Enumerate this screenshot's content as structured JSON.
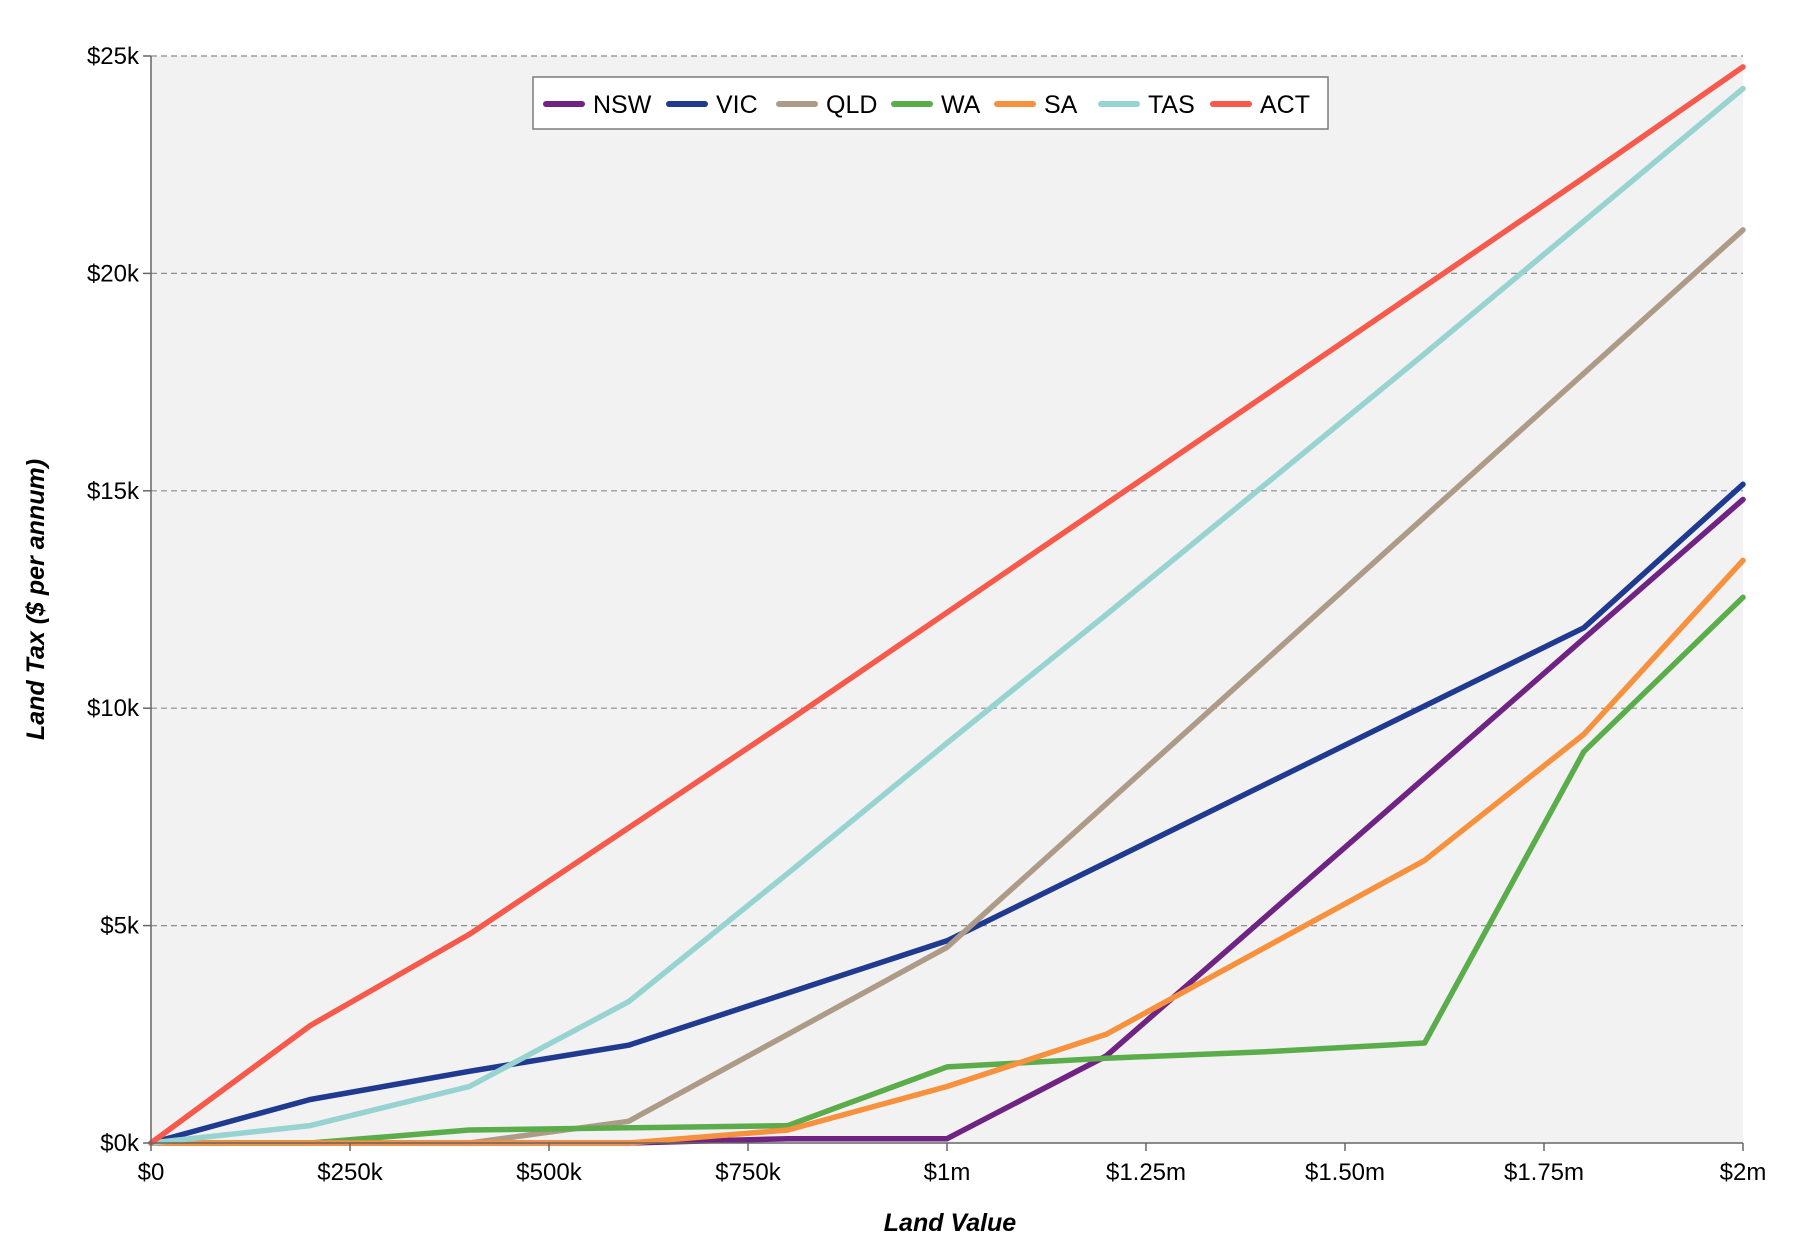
{
  "chart_data": {
    "type": "line",
    "title": "",
    "xlabel": "Land Value",
    "ylabel": "Land Tax  ($ per annum)",
    "xlim": [
      0,
      2000000
    ],
    "ylim": [
      0,
      25000
    ],
    "grid": "horizontal dashed",
    "legend_position": "top-center",
    "plot_background": "#f2f2f2",
    "x_ticks": [
      {
        "value": 0,
        "label": "$0"
      },
      {
        "value": 250000,
        "label": "$250k"
      },
      {
        "value": 500000,
        "label": "$500k"
      },
      {
        "value": 750000,
        "label": "$750k"
      },
      {
        "value": 1000000,
        "label": "$1m"
      },
      {
        "value": 1250000,
        "label": "$1.25m"
      },
      {
        "value": 1500000,
        "label": "$1.50m"
      },
      {
        "value": 1750000,
        "label": "$1.75m"
      },
      {
        "value": 2000000,
        "label": "$2m"
      }
    ],
    "y_ticks": [
      {
        "value": 0,
        "label": "$0k"
      },
      {
        "value": 5000,
        "label": "$5k"
      },
      {
        "value": 10000,
        "label": "$10k"
      },
      {
        "value": 15000,
        "label": "$15k"
      },
      {
        "value": 20000,
        "label": "$20k"
      },
      {
        "value": 25000,
        "label": "$25k"
      }
    ],
    "x": [
      0,
      200000,
      400000,
      600000,
      800000,
      1000000,
      1200000,
      1400000,
      1600000,
      1800000,
      2000000
    ],
    "series": [
      {
        "name": "NSW",
        "color": "#6f2382",
        "values": [
          0,
          0,
          0,
          0,
          100,
          100,
          2000,
          5200,
          8400,
          11600,
          14800
        ]
      },
      {
        "name": "VIC",
        "color": "#1f3a8f",
        "values": [
          0,
          1000,
          1650,
          2250,
          3450,
          4650,
          6450,
          8250,
          10050,
          11850,
          15150
        ]
      },
      {
        "name": "QLD",
        "color": "#ae9b87",
        "values": [
          0,
          0,
          0,
          500,
          2500,
          4500,
          7800,
          11100,
          14400,
          17700,
          21000
        ]
      },
      {
        "name": "WA",
        "color": "#5aad4a",
        "values": [
          0,
          0,
          300,
          350,
          400,
          1750,
          1950,
          2100,
          2300,
          9000,
          12550
        ]
      },
      {
        "name": "SA",
        "color": "#f7913d",
        "values": [
          0,
          0,
          0,
          0,
          300,
          1300,
          2500,
          4500,
          6500,
          9400,
          13400
        ]
      },
      {
        "name": "TAS",
        "color": "#97d3d0",
        "values": [
          0,
          400,
          1300,
          3250,
          6200,
          9200,
          12150,
          15150,
          18150,
          21200,
          24250
        ]
      },
      {
        "name": "ACT",
        "color": "#f7594a",
        "values": [
          0,
          2700,
          4800,
          7250,
          9700,
          12200,
          14700,
          17200,
          19700,
          22200,
          24750
        ]
      }
    ]
  }
}
